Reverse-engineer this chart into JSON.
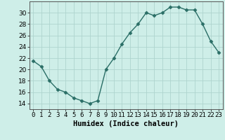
{
  "xlabel": "Humidex (Indice chaleur)",
  "x": [
    0,
    1,
    2,
    3,
    4,
    5,
    6,
    7,
    8,
    9,
    10,
    11,
    12,
    13,
    14,
    15,
    16,
    17,
    18,
    19,
    20,
    21,
    22,
    23
  ],
  "y": [
    21.5,
    20.5,
    18.0,
    16.5,
    16.0,
    15.0,
    14.5,
    14.0,
    14.5,
    20.0,
    22.0,
    24.5,
    26.5,
    28.0,
    30.0,
    29.5,
    30.0,
    31.0,
    31.0,
    30.5,
    30.5,
    28.0,
    25.0,
    23.0
  ],
  "line_color": "#2a6e66",
  "marker": "D",
  "marker_size": 2.5,
  "line_width": 1.0,
  "bg_color": "#ceeee8",
  "grid_color": "#aed4ce",
  "xlim": [
    -0.5,
    23.5
  ],
  "ylim": [
    13,
    32
  ],
  "yticks": [
    14,
    16,
    18,
    20,
    22,
    24,
    26,
    28,
    30
  ],
  "xtick_labels": [
    "0",
    "1",
    "2",
    "3",
    "4",
    "5",
    "6",
    "7",
    "8",
    "9",
    "10",
    "11",
    "12",
    "13",
    "14",
    "15",
    "16",
    "17",
    "18",
    "19",
    "20",
    "21",
    "22",
    "23"
  ],
  "tick_fontsize": 6.5,
  "xlabel_fontsize": 7.5,
  "spine_color": "#555555"
}
